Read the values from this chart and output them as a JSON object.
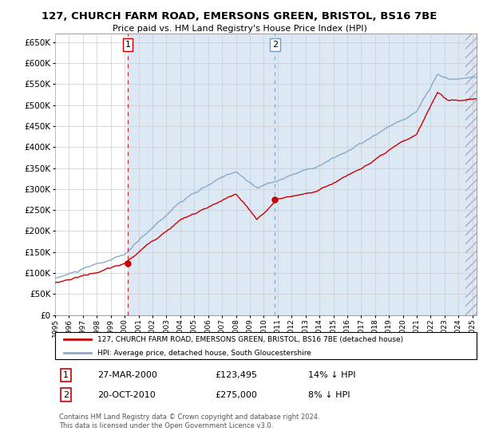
{
  "title1": "127, CHURCH FARM ROAD, EMERSONS GREEN, BRISTOL, BS16 7BE",
  "title2": "Price paid vs. HM Land Registry's House Price Index (HPI)",
  "ylim": [
    0,
    670000
  ],
  "yticks": [
    0,
    50000,
    100000,
    150000,
    200000,
    250000,
    300000,
    350000,
    400000,
    450000,
    500000,
    550000,
    600000,
    650000
  ],
  "xlim_start": 1995.0,
  "xlim_end": 2025.3,
  "sale1_date": 2000.23,
  "sale1_price": 123495,
  "sale2_date": 2010.8,
  "sale2_price": 275000,
  "plot_bg": "#ffffff",
  "grid_color": "#cccccc",
  "red_line_color": "#cc0000",
  "blue_line_color": "#88aacc",
  "shade_color": "#dce9f5",
  "legend_label1": "127, CHURCH FARM ROAD, EMERSONS GREEN, BRISTOL, BS16 7BE (detached house)",
  "legend_label2": "HPI: Average price, detached house, South Gloucestershire",
  "table_row1": [
    "1",
    "27-MAR-2000",
    "£123,495",
    "14% ↓ HPI"
  ],
  "table_row2": [
    "2",
    "20-OCT-2010",
    "£275,000",
    "8% ↓ HPI"
  ],
  "footer": "Contains HM Land Registry data © Crown copyright and database right 2024.\nThis data is licensed under the Open Government Licence v3.0."
}
